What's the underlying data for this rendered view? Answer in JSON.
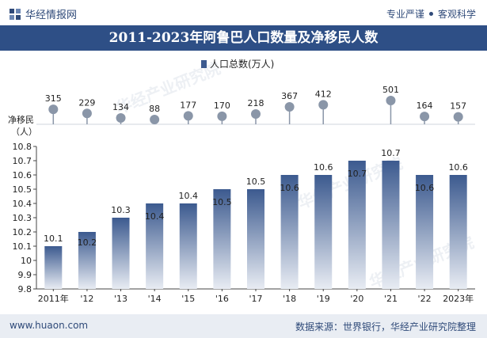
{
  "header": {
    "brand": "华经情报网",
    "tagline_left": "专业严谨",
    "tagline_right": "客观科学"
  },
  "title": "2011-2023年阿鲁巴人口数量及净移民人数",
  "footer": {
    "website": "www.huaon.com",
    "source": "数据来源：世界银行，华经产业研究院整理"
  },
  "watermark": "华经产业研究院",
  "colors": {
    "title_bg": "#2e4f86",
    "bar_top": "#3c5a8f",
    "bar_bottom": "#e8ecf3",
    "lollipop": "#8a96a8",
    "footer_bg": "#e9edf3"
  },
  "chart_data": [
    {
      "type": "bar",
      "legend": "人口总数(万人)",
      "legend_position": "top-center",
      "categories": [
        "2011年",
        "'12",
        "'13",
        "'14",
        "'15",
        "'16",
        "'17",
        "'18",
        "'19",
        "'20",
        "'21",
        "'22",
        "2023年"
      ],
      "values": [
        10.1,
        10.2,
        10.3,
        10.4,
        10.4,
        10.5,
        10.5,
        10.6,
        10.6,
        10.7,
        10.7,
        10.6,
        10.6
      ],
      "ylim": [
        9.8,
        10.8
      ],
      "yticks": [
        "9.8",
        "9.9",
        "10",
        "10.1",
        "10.2",
        "10.3",
        "10.4",
        "10.5",
        "10.6",
        "10.7",
        "10.8"
      ]
    },
    {
      "type": "scatter",
      "ylabel": "净移民（人）",
      "categories": [
        "2011年",
        "'12",
        "'13",
        "'14",
        "'15",
        "'16",
        "'17",
        "'18",
        "'19",
        "'20",
        "'21",
        "'22",
        "2023年"
      ],
      "values": [
        315,
        229,
        134,
        88,
        177,
        170,
        218,
        367,
        412,
        null,
        501,
        164,
        157
      ]
    }
  ]
}
